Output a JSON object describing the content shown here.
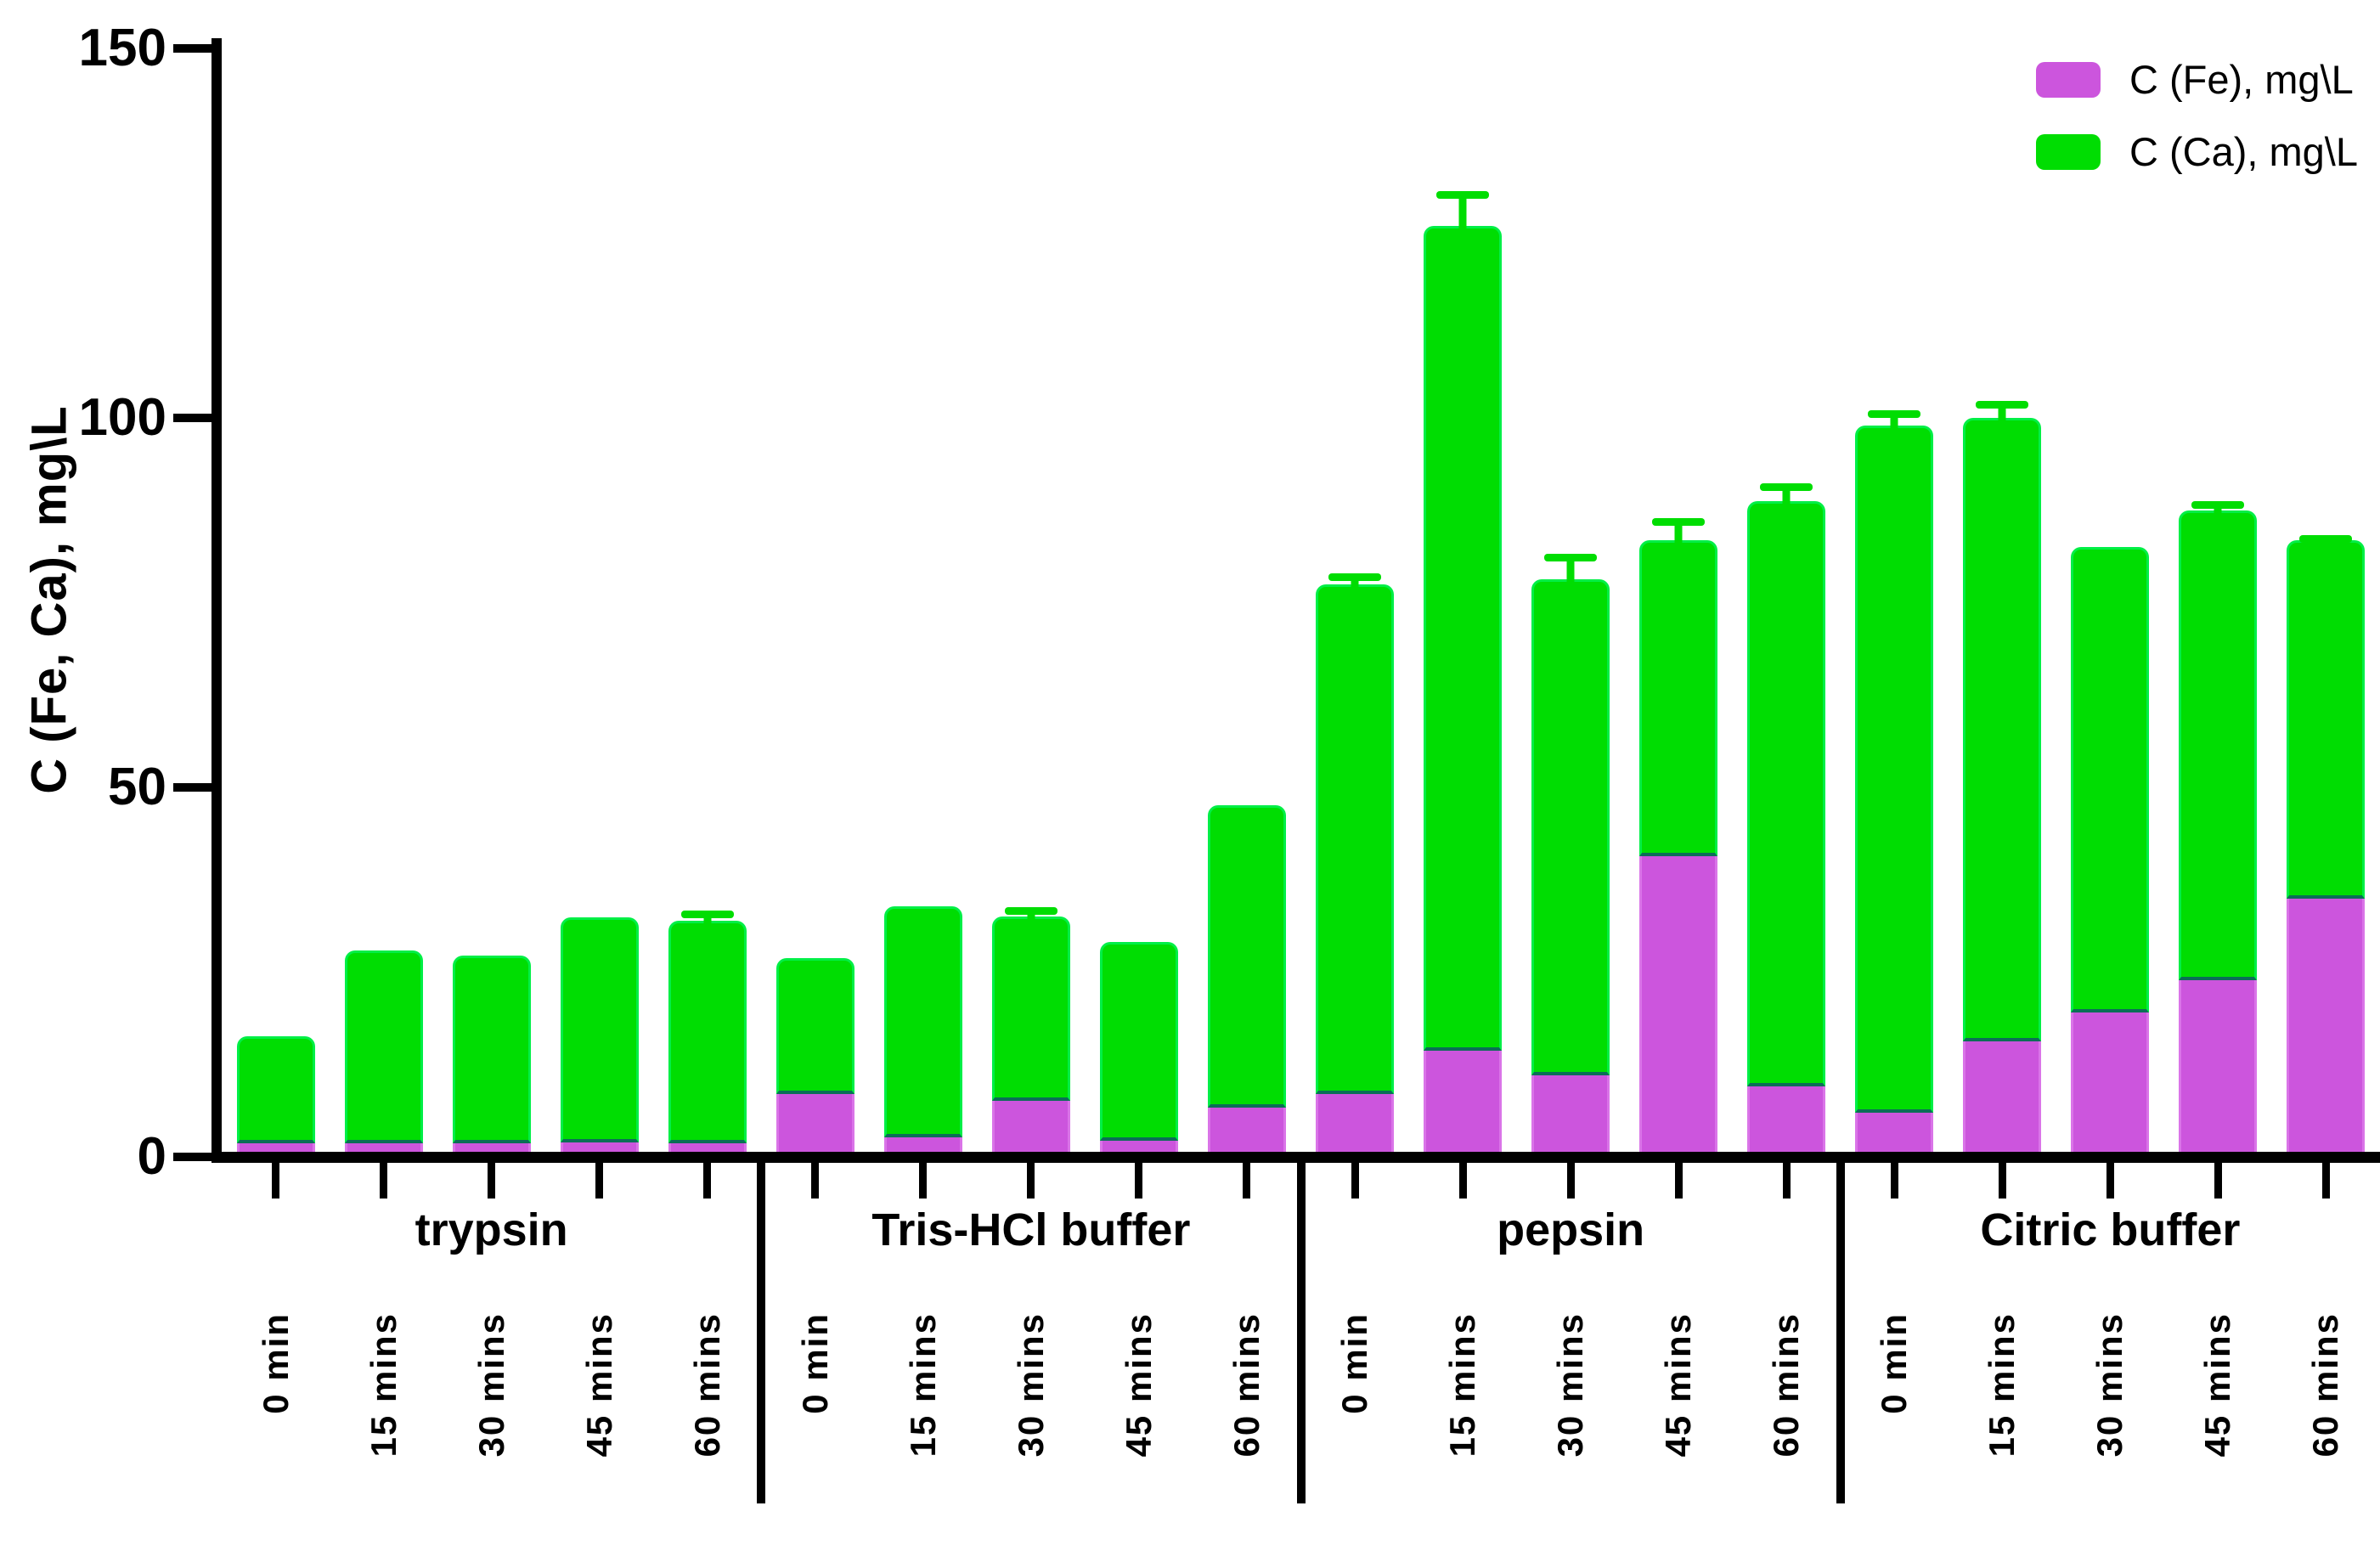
{
  "chart_data": {
    "type": "bar",
    "subtype": "stacked-vertical-with-error-bars",
    "title": "",
    "ylabel": "C (Fe, Ca), mg\\L",
    "xlabel": "",
    "ylim": [
      0,
      150
    ],
    "yticks": [
      0,
      50,
      100,
      150
    ],
    "ytick_labels": [
      "0",
      "50",
      "100",
      "150"
    ],
    "grid": "off",
    "legend_position": "top-right",
    "colors": {
      "fe": "#cc55dd",
      "ca": "#00dd02",
      "axis": "#000000"
    },
    "legend": [
      {
        "series": "fe",
        "label": "C (Fe), mg\\L",
        "color": "#cc55dd"
      },
      {
        "series": "ca",
        "label": "C (Ca), mg\\L",
        "color": "#00dd02"
      }
    ],
    "time_labels": [
      "0 min",
      "15 mins",
      "30 mins",
      "45 mins",
      "60 mins"
    ],
    "groups": [
      {
        "label": "trypsin",
        "fe": [
          1.2,
          1.2,
          1.2,
          1.3,
          1.2
        ],
        "ca": [
          14.4,
          26.0,
          25.4,
          30.4,
          30.1
        ],
        "err": [
          0,
          0,
          0,
          0,
          1.4
        ]
      },
      {
        "label": "Tris-HCl buffer",
        "fe": [
          7.8,
          2.0,
          6.9,
          1.5,
          6.0
        ],
        "ca": [
          18.4,
          31.2,
          24.9,
          26.9,
          40.9
        ],
        "err": [
          0,
          0,
          1.3,
          0,
          0
        ]
      },
      {
        "label": "pepsin",
        "fe": [
          7.8,
          13.7,
          10.3,
          40.0,
          8.8
        ],
        "ca": [
          69.0,
          111.6,
          67.2,
          42.8,
          79.3
        ],
        "err": [
          1.5,
          4.7,
          3.4,
          2.9,
          2.4
        ]
      },
      {
        "label": "Citric buffer",
        "fe": [
          5.3,
          15.0,
          18.8,
          23.2,
          34.3
        ],
        "ca": [
          93.0,
          84.3,
          63.0,
          63.6,
          48.5
        ],
        "err": [
          2.0,
          2.3,
          0,
          1.3,
          0.7
        ]
      }
    ]
  }
}
